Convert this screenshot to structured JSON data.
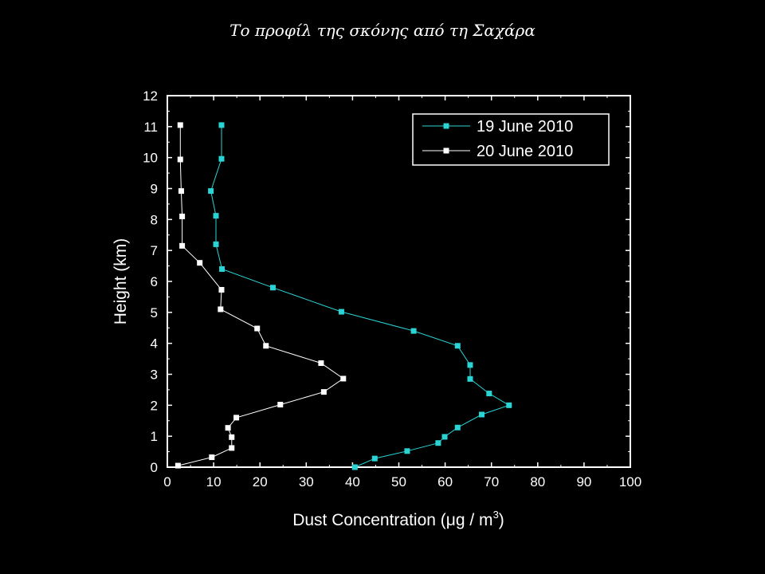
{
  "title": "Το προφίλ της σκόνης από τη Σαχάρα",
  "chart_data": {
    "type": "line",
    "xlabel": "Dust Concentration (μg / m",
    "xlabel_superscript": "3",
    "xlabel_suffix": ")",
    "ylabel": "Height (km)",
    "xlim": [
      0,
      100
    ],
    "ylim": [
      0,
      12
    ],
    "xticks": [
      "0",
      "10",
      "20",
      "30",
      "40",
      "50",
      "60",
      "70",
      "80",
      "90",
      "100"
    ],
    "yticks": [
      "0",
      "1",
      "2",
      "3",
      "4",
      "5",
      "6",
      "7",
      "8",
      "9",
      "10",
      "11",
      "12"
    ],
    "grid": false,
    "legend_position": "top-right",
    "series": [
      {
        "name": "19 June 2010",
        "color": "#2ad4d4",
        "points": [
          [
            40.5,
            0.0
          ],
          [
            44.8,
            0.28
          ],
          [
            51.8,
            0.52
          ],
          [
            58.5,
            0.78
          ],
          [
            59.9,
            0.98
          ],
          [
            62.7,
            1.28
          ],
          [
            67.9,
            1.7
          ],
          [
            73.8,
            2.0
          ],
          [
            69.5,
            2.38
          ],
          [
            65.4,
            2.85
          ],
          [
            65.4,
            3.3
          ],
          [
            62.7,
            3.92
          ],
          [
            53.2,
            4.4
          ],
          [
            37.6,
            5.02
          ],
          [
            22.8,
            5.8
          ],
          [
            11.8,
            6.4
          ],
          [
            10.5,
            7.2
          ],
          [
            10.5,
            8.12
          ],
          [
            9.4,
            8.92
          ],
          [
            11.7,
            9.96
          ],
          [
            11.7,
            11.05
          ]
        ]
      },
      {
        "name": "20 June 2010",
        "color": "#ffffff",
        "points": [
          [
            2.3,
            0.05
          ],
          [
            9.6,
            0.32
          ],
          [
            13.9,
            0.62
          ],
          [
            13.9,
            0.97
          ],
          [
            13.1,
            1.27
          ],
          [
            14.9,
            1.6
          ],
          [
            24.4,
            2.02
          ],
          [
            33.8,
            2.43
          ],
          [
            38.0,
            2.86
          ],
          [
            33.2,
            3.36
          ],
          [
            21.3,
            3.92
          ],
          [
            19.4,
            4.48
          ],
          [
            11.5,
            5.1
          ],
          [
            11.7,
            5.73
          ],
          [
            7.0,
            6.6
          ],
          [
            3.2,
            7.15
          ],
          [
            3.2,
            8.1
          ],
          [
            3.0,
            8.92
          ],
          [
            2.8,
            9.94
          ],
          [
            2.8,
            11.05
          ]
        ]
      }
    ]
  }
}
